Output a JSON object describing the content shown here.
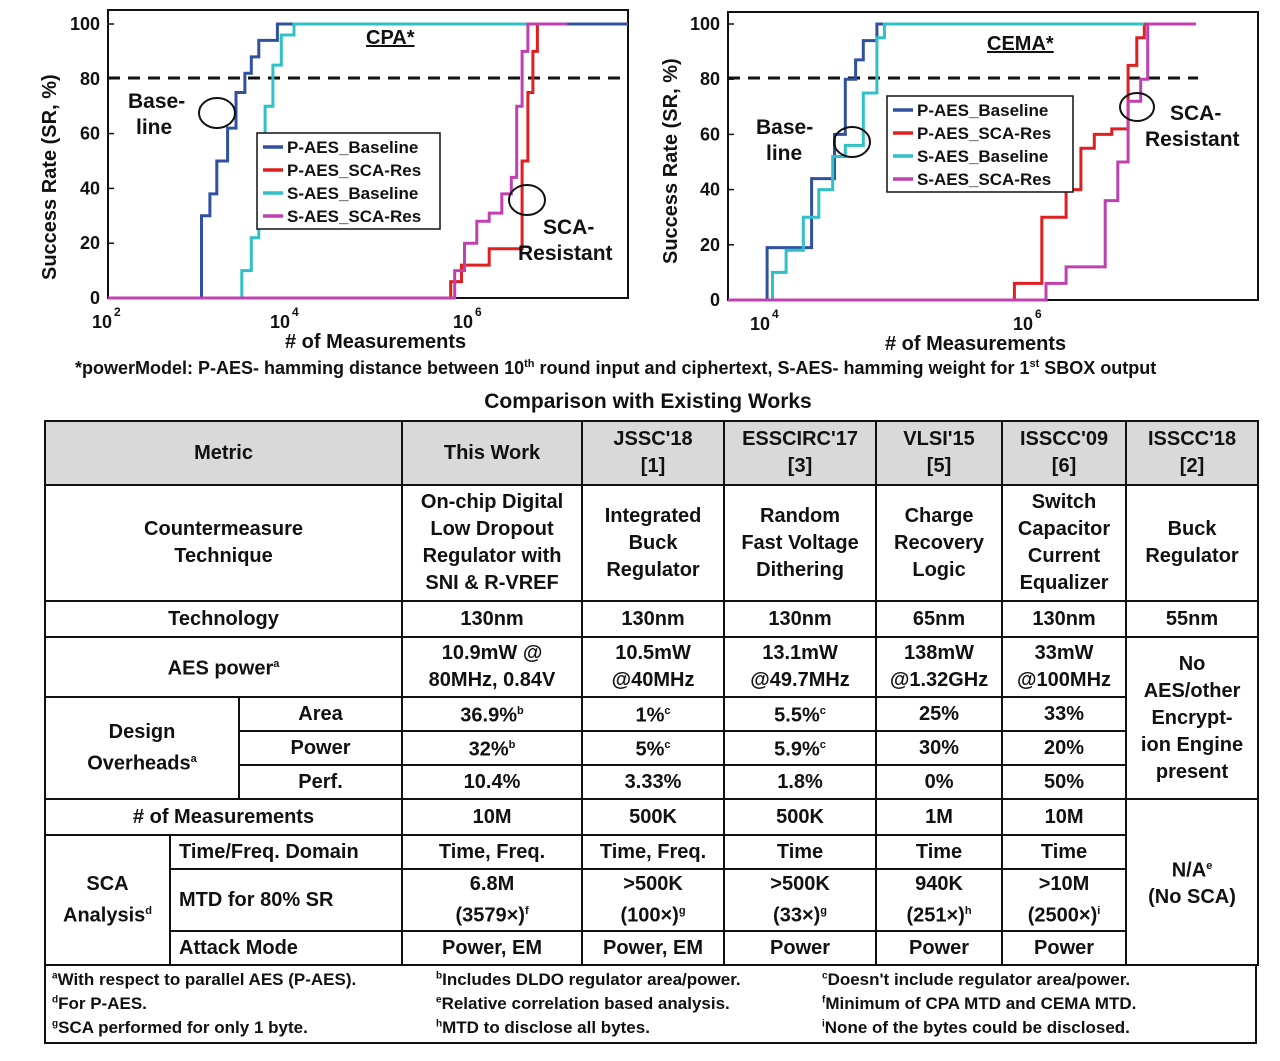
{
  "chart_data": [
    {
      "type": "line",
      "title": "CPA*",
      "xlabel": "# of Measurements",
      "ylabel": "Success Rate (SR, %)",
      "xscale": "log",
      "xlim": [
        100,
        100000000
      ],
      "ylim": [
        0,
        100
      ],
      "xticks": [
        "10^2",
        "10^4",
        "10^6"
      ],
      "yticks": [
        0,
        20,
        40,
        60,
        80,
        100
      ],
      "threshold_line": 80,
      "annotations": [
        {
          "text": "Base- line"
        },
        {
          "text": "SCA- Resistant"
        }
      ],
      "legend_position": "center",
      "series": [
        {
          "name": "P-AES_Baseline",
          "color": "#3050a0",
          "points": [
            [
              100,
              0
            ],
            [
              900,
              0
            ],
            [
              1200,
              30
            ],
            [
              1500,
              38
            ],
            [
              1800,
              50
            ],
            [
              2400,
              62
            ],
            [
              3000,
              75
            ],
            [
              3800,
              82
            ],
            [
              4500,
              88
            ],
            [
              5500,
              94
            ],
            [
              8000,
              94
            ],
            [
              9000,
              100
            ],
            [
              100000000,
              100
            ]
          ]
        },
        {
          "name": "P-AES_SCA-Res",
          "color": "#e02020",
          "points": [
            [
              100,
              0
            ],
            [
              700000,
              0
            ],
            [
              900000,
              6
            ],
            [
              1200000,
              12
            ],
            [
              2000000,
              12
            ],
            [
              2500000,
              18
            ],
            [
              5000000,
              18
            ],
            [
              6000000,
              50
            ],
            [
              7000000,
              75
            ],
            [
              8000000,
              90
            ],
            [
              9000000,
              100
            ],
            [
              12000000,
              100
            ]
          ]
        },
        {
          "name": "S-AES_Baseline",
          "color": "#30c0c8",
          "points": [
            [
              100,
              0
            ],
            [
              2500,
              0
            ],
            [
              3500,
              10
            ],
            [
              4500,
              22
            ],
            [
              5500,
              50
            ],
            [
              6500,
              70
            ],
            [
              8000,
              85
            ],
            [
              10000,
              96
            ],
            [
              14000,
              100
            ],
            [
              10000000,
              100
            ]
          ]
        },
        {
          "name": "S-AES_SCA-Res",
          "color": "#c040b0",
          "points": [
            [
              100,
              0
            ],
            [
              900000,
              0
            ],
            [
              1000000,
              10
            ],
            [
              1300000,
              20
            ],
            [
              1800000,
              28
            ],
            [
              2500000,
              31
            ],
            [
              3500000,
              38
            ],
            [
              4500000,
              44
            ],
            [
              5200000,
              70
            ],
            [
              6000000,
              90
            ],
            [
              7000000,
              100
            ],
            [
              20000000,
              100
            ]
          ]
        }
      ]
    },
    {
      "type": "line",
      "title": "CEMA*",
      "xlabel": "# of Measurements",
      "ylabel": "Success Rate (SR, %)",
      "xscale": "log",
      "xlim": [
        5000,
        60000000
      ],
      "ylim": [
        0,
        100
      ],
      "xticks": [
        "10^4",
        "10^6"
      ],
      "yticks": [
        0,
        20,
        40,
        60,
        80,
        100
      ],
      "threshold_line": 80,
      "annotations": [
        {
          "text": "Base- line"
        },
        {
          "text": "SCA- Resistant"
        }
      ],
      "legend_position": "center",
      "series": [
        {
          "name": "P-AES_Baseline",
          "color": "#3050a0",
          "points": [
            [
              5000,
              0
            ],
            [
              8000,
              0
            ],
            [
              10000,
              19
            ],
            [
              17000,
              19
            ],
            [
              22000,
              44
            ],
            [
              28000,
              44
            ],
            [
              33000,
              60
            ],
            [
              40000,
              80
            ],
            [
              48000,
              87
            ],
            [
              55000,
              94
            ],
            [
              70000,
              100
            ],
            [
              5000000,
              100
            ]
          ]
        },
        {
          "name": "P-AES_SCA-Res",
          "color": "#e02020",
          "points": [
            [
              5000,
              0
            ],
            [
              700000,
              0
            ],
            [
              800000,
              6
            ],
            [
              1100000,
              6
            ],
            [
              1300000,
              30
            ],
            [
              2000000,
              40
            ],
            [
              2600000,
              55
            ],
            [
              3300000,
              60
            ],
            [
              4500000,
              62
            ],
            [
              6000000,
              85
            ],
            [
              7000000,
              95
            ],
            [
              8000000,
              100
            ],
            [
              10000000,
              100
            ]
          ]
        },
        {
          "name": "S-AES_Baseline",
          "color": "#30c0c8",
          "points": [
            [
              5000,
              0
            ],
            [
              9000,
              0
            ],
            [
              11000,
              10
            ],
            [
              14000,
              18
            ],
            [
              19000,
              30
            ],
            [
              25000,
              40
            ],
            [
              32000,
              52
            ],
            [
              40000,
              56
            ],
            [
              55000,
              75
            ],
            [
              70000,
              95
            ],
            [
              80000,
              100
            ],
            [
              8000000,
              100
            ]
          ]
        },
        {
          "name": "S-AES_SCA-Res",
          "color": "#c040b0",
          "points": [
            [
              5000,
              0
            ],
            [
              1200000,
              0
            ],
            [
              1400000,
              6
            ],
            [
              2000000,
              12
            ],
            [
              3000000,
              12
            ],
            [
              4000000,
              36
            ],
            [
              5000000,
              50
            ],
            [
              6000000,
              72
            ],
            [
              7500000,
              80
            ],
            [
              8500000,
              100
            ],
            [
              20000000,
              100
            ]
          ]
        }
      ]
    }
  ],
  "power_note": {
    "part1": "*powerModel: P-AES- hamming distance between 10",
    "sup1": "th",
    "part2": " round input and ciphertext, S-AES- hamming weight for 1",
    "sup2": "st",
    "part3": " SBOX output"
  },
  "table_title": "Comparison with Existing Works",
  "table": {
    "header": {
      "metric": "Metric",
      "this_work": "This Work",
      "c1_line1": "JSSC'18",
      "c1_line2": "[1]",
      "c2_line1": "ESSCIRC'17",
      "c2_line2": "[3]",
      "c3_line1": "VLSI'15",
      "c3_line2": "[5]",
      "c4_line1": "ISSCC'09",
      "c4_line2": "[6]",
      "c5_line1": "ISSCC'18",
      "c5_line2": "[2]"
    },
    "countermeasure": {
      "label_line1": "Countermeasure",
      "label_line2": "Technique",
      "this_work": [
        "On-chip Digital",
        "Low Dropout",
        "Regulator with",
        "SNI & R-VREF"
      ],
      "c1": [
        "Integrated",
        "Buck",
        "Regulator"
      ],
      "c2": [
        "Random",
        "Fast Voltage",
        "Dithering"
      ],
      "c3": [
        "Charge",
        "Recovery",
        "Logic"
      ],
      "c4": [
        "Switch",
        "Capacitor",
        "Current",
        "Equalizer"
      ],
      "c5": [
        "Buck",
        "Regulator"
      ]
    },
    "technology": {
      "label": "Technology",
      "values": [
        "130nm",
        "130nm",
        "130nm",
        "65nm",
        "130nm",
        "55nm"
      ]
    },
    "aes_power": {
      "label": "AES power",
      "label_sup": "a",
      "this_work": [
        "10.9mW @",
        "80MHz, 0.84V"
      ],
      "c1": [
        "10.5mW",
        "@40MHz"
      ],
      "c2": [
        "13.1mW",
        "@49.7MHz"
      ],
      "c3": [
        "138mW",
        "@1.32GHz"
      ],
      "c4": [
        "33mW",
        "@100MHz"
      ]
    },
    "no_aes_note": [
      "No",
      "AES/other",
      "Encrypt-",
      "ion Engine",
      "present"
    ],
    "design_overheads": {
      "label_line1": "Design",
      "label_line2": "Overheads",
      "label_sup": "a",
      "area": {
        "label": "Area",
        "values": [
          "36.9%",
          "1%",
          "5.5%",
          "25%",
          "33%"
        ],
        "sups": [
          "b",
          "c",
          "c",
          "",
          ""
        ]
      },
      "power": {
        "label": "Power",
        "values": [
          "32%",
          "5%",
          "5.9%",
          "30%",
          "20%"
        ],
        "sups": [
          "b",
          "c",
          "c",
          "",
          ""
        ]
      },
      "perf": {
        "label": "Perf.",
        "values": [
          "10.4%",
          "3.33%",
          "1.8%",
          "0%",
          "50%"
        ]
      }
    },
    "measurements": {
      "label": "# of Measurements",
      "values": [
        "10M",
        "500K",
        "500K",
        "1M",
        "10M"
      ]
    },
    "sca": {
      "label_line1": "SCA",
      "label_line2": "Analysis",
      "label_sup": "d",
      "domain": {
        "label": "Time/Freq. Domain",
        "values": [
          "Time, Freq.",
          "Time, Freq.",
          "Time",
          "Time",
          "Time"
        ]
      },
      "mtd": {
        "label": "MTD for 80% SR",
        "line1": [
          "6.8M",
          ">500K",
          ">500K",
          "940K",
          ">10M"
        ],
        "line2": [
          "(3579×)",
          "(100×)",
          "(33×)",
          "(251×)",
          "(2500×)"
        ],
        "sups": [
          "f",
          "g",
          "g",
          "h",
          "i"
        ]
      },
      "attack": {
        "label": "Attack Mode",
        "values": [
          "Power, EM",
          "Power, EM",
          "Power",
          "Power",
          "Power"
        ]
      },
      "na_line1": "N/A",
      "na_sup": "e",
      "na_line2": "(No SCA)"
    }
  },
  "footnotes": [
    {
      "sup": "a",
      "text": "With respect to parallel AES (P-AES)."
    },
    {
      "sup": "b",
      "text": "Includes DLDO regulator area/power."
    },
    {
      "sup": "c",
      "text": "Doesn't include regulator area/power."
    },
    {
      "sup": "d",
      "text": "For P-AES."
    },
    {
      "sup": "e",
      "text": "Relative correlation based analysis."
    },
    {
      "sup": "f",
      "text": "Minimum of CPA MTD and CEMA MTD."
    },
    {
      "sup": "g",
      "text": "SCA performed for only 1 byte."
    },
    {
      "sup": "h",
      "text": "MTD to disclose all bytes."
    },
    {
      "sup": "i",
      "text": "None of the bytes could be disclosed."
    }
  ]
}
